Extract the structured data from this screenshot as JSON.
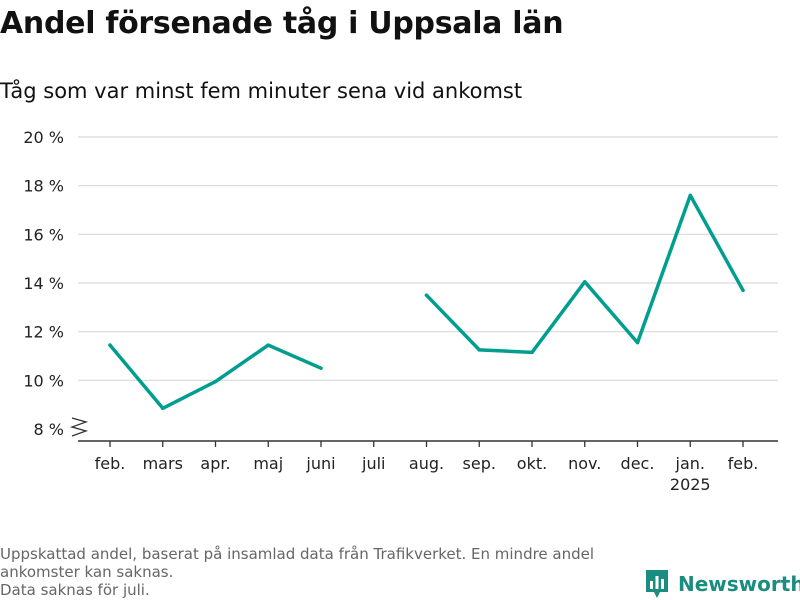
{
  "header": {
    "title": "Andel försenade tåg i Uppsala län",
    "subtitle": "Tåg som var minst fem minuter sena vid ankomst"
  },
  "chart_data": {
    "type": "line",
    "categories": [
      "feb.",
      "mars",
      "apr.",
      "maj",
      "juni",
      "juli",
      "aug.",
      "sep.",
      "okt.",
      "nov.",
      "dec.",
      "jan.",
      "feb."
    ],
    "category_sublabels": [
      "",
      "",
      "",
      "",
      "",
      "",
      "",
      "",
      "",
      "",
      "",
      "2025",
      ""
    ],
    "series": [
      {
        "values": [
          11.45,
          8.85,
          9.95,
          11.45,
          10.5,
          null,
          13.5,
          11.25,
          11.15,
          14.05,
          11.55,
          17.6,
          13.7
        ]
      }
    ],
    "ylim": [
      8,
      20
    ],
    "yticks": [
      8,
      10,
      12,
      14,
      16,
      18,
      20
    ],
    "ytick_labels": [
      "8 %",
      "10 %",
      "12 %",
      "14 %",
      "16 %",
      "18 %",
      "20 %"
    ],
    "grid": true,
    "line_color": "#009e8f",
    "axis_break": true
  },
  "footer": {
    "note_lines": [
      "Uppskattad andel, baserat på insamlad data från Trafikverket. En mindre andel",
      "ankomster kan saknas.",
      "Data saknas för juli."
    ],
    "brand": "Newsworthy",
    "brand_color": "#1a8c80"
  }
}
